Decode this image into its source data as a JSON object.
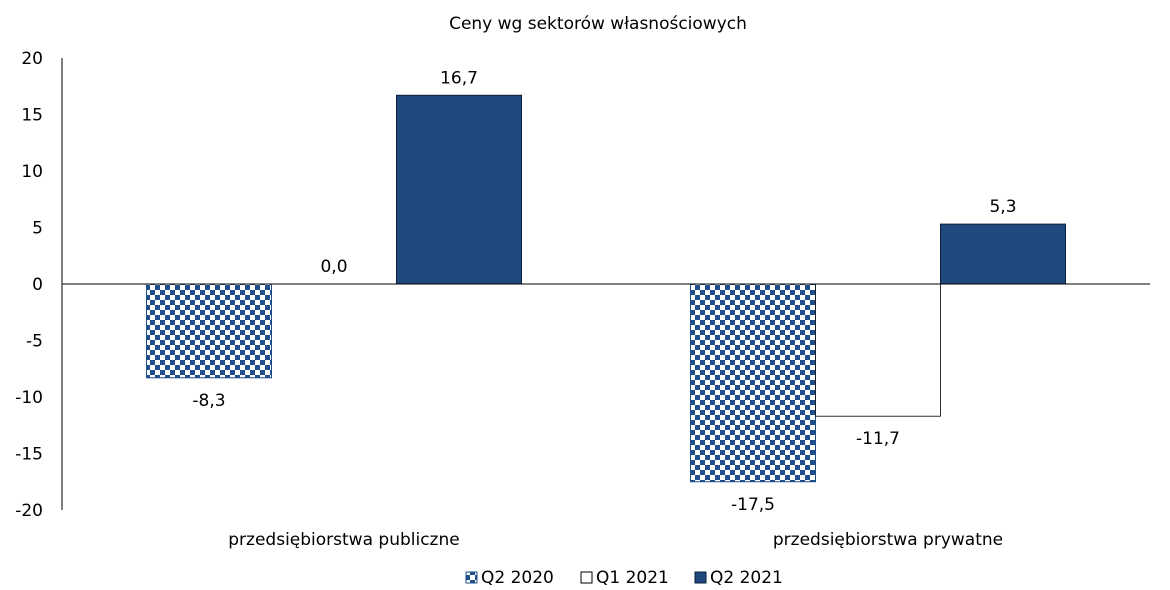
{
  "chart_data": {
    "type": "bar",
    "title": "Ceny wg sektorów własnościowych",
    "categories": [
      "przedsiębiorstwa publiczne",
      "przedsiębiorstwa prywatne"
    ],
    "series": [
      {
        "name": "Q2 2020",
        "values": [
          -8.3,
          -17.5
        ],
        "style": "checker",
        "color": "#1f4e8c"
      },
      {
        "name": "Q1 2021",
        "values": [
          0.0,
          -11.7
        ],
        "style": "outline",
        "color": "#ffffff"
      },
      {
        "name": "Q2 2021",
        "values": [
          16.7,
          5.3
        ],
        "style": "solid",
        "color": "#1f497d"
      }
    ],
    "data_labels": [
      [
        "-8,3",
        "-17,5"
      ],
      [
        "0,0",
        "-11,7"
      ],
      [
        "16,7",
        "5,3"
      ]
    ],
    "ylim": [
      -20,
      20
    ],
    "yticks": [
      20,
      15,
      10,
      5,
      0,
      -5,
      -10,
      -15,
      -20
    ],
    "legend_position": "bottom",
    "grid": false
  }
}
